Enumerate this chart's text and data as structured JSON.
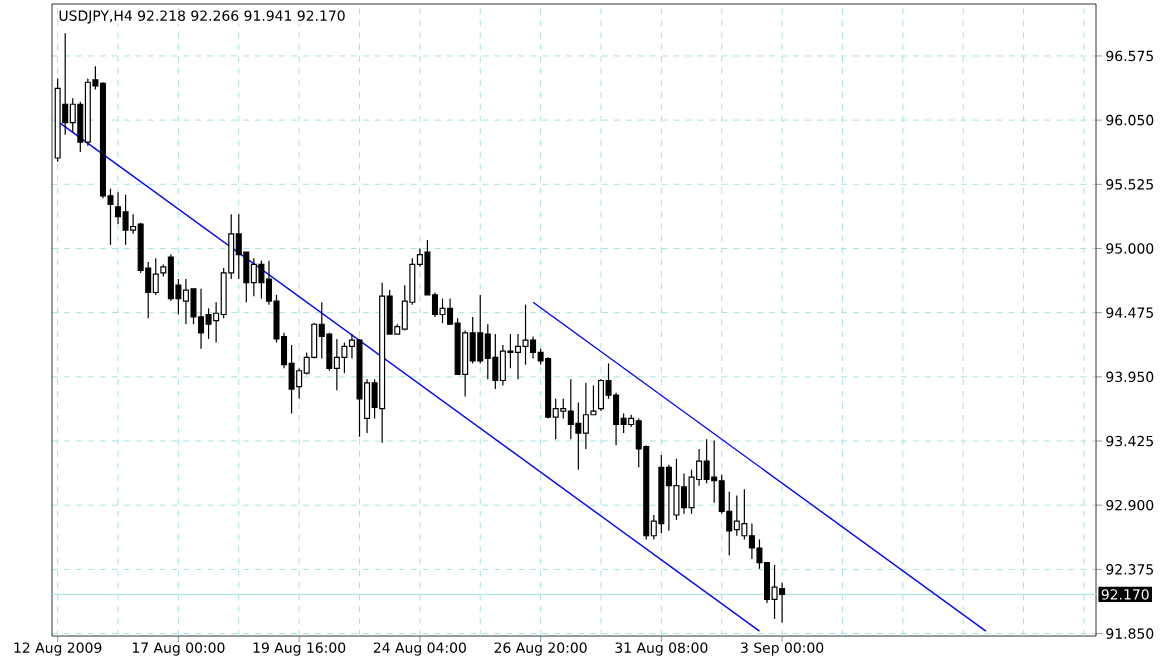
{
  "chart_data": {
    "type": "candlestick",
    "title": "USDJPY,H4  92.218 92.266 91.941 92.170",
    "categories": [
      "12 Aug 2009",
      null,
      null,
      null,
      null,
      null,
      null,
      null,
      null,
      null,
      null,
      null,
      null,
      null,
      null,
      null,
      "17 Aug 00:00",
      null,
      null,
      null,
      null,
      null,
      null,
      null,
      null,
      null,
      null,
      null,
      null,
      null,
      null,
      null,
      "19 Aug 16:00",
      null,
      null,
      null,
      null,
      null,
      null,
      null,
      null,
      null,
      null,
      null,
      null,
      null,
      null,
      null,
      "24 Aug 04:00",
      null,
      null,
      null,
      null,
      null,
      null,
      null,
      null,
      null,
      null,
      null,
      null,
      null,
      null,
      null,
      "26 Aug 20:00",
      null,
      null,
      null,
      null,
      null,
      null,
      null,
      null,
      null,
      null,
      null,
      null,
      null,
      null,
      null,
      "31 Aug 08:00",
      null,
      null,
      null,
      null,
      null,
      null,
      null,
      null,
      null,
      null,
      null,
      null,
      null,
      null,
      null,
      "3 Sep 00:00",
      null,
      null,
      null,
      null,
      null,
      null,
      null,
      null,
      null,
      null,
      null,
      null,
      null,
      null,
      null,
      null,
      null,
      null,
      null,
      null,
      null,
      null,
      null,
      null,
      null,
      null,
      null,
      null,
      null,
      null,
      null,
      null,
      null,
      null,
      null,
      null,
      null,
      null,
      null,
      null,
      null
    ],
    "ohlc": [
      [
        95.74,
        96.39,
        95.71,
        96.31
      ],
      [
        96.18,
        96.76,
        95.93,
        96.03
      ],
      [
        96.03,
        96.23,
        95.95,
        96.18
      ],
      [
        96.18,
        96.2,
        95.79,
        95.87
      ],
      [
        95.87,
        96.39,
        95.84,
        96.36
      ],
      [
        96.38,
        96.49,
        96.3,
        96.33
      ],
      [
        96.35,
        96.36,
        95.41,
        95.43
      ],
      [
        95.43,
        95.49,
        95.03,
        95.36
      ],
      [
        95.34,
        95.46,
        95.2,
        95.26
      ],
      [
        95.3,
        95.44,
        95.03,
        95.15
      ],
      [
        95.15,
        95.28,
        95.12,
        95.18
      ],
      [
        95.2,
        95.21,
        94.8,
        94.82
      ],
      [
        94.84,
        94.89,
        94.43,
        94.64
      ],
      [
        94.64,
        94.92,
        94.62,
        94.79
      ],
      [
        94.8,
        94.87,
        94.77,
        94.85
      ],
      [
        94.93,
        94.95,
        94.57,
        94.59
      ],
      [
        94.7,
        94.75,
        94.46,
        94.59
      ],
      [
        94.57,
        94.75,
        94.38,
        94.66
      ],
      [
        94.67,
        94.67,
        94.38,
        94.44
      ],
      [
        94.44,
        94.67,
        94.18,
        94.31
      ],
      [
        94.46,
        94.51,
        94.26,
        94.38
      ],
      [
        94.41,
        94.56,
        94.23,
        94.47
      ],
      [
        94.46,
        94.84,
        94.43,
        94.8
      ],
      [
        94.8,
        95.28,
        94.75,
        95.12
      ],
      [
        95.12,
        95.28,
        94.75,
        94.95
      ],
      [
        94.97,
        94.97,
        94.56,
        94.72
      ],
      [
        94.72,
        94.92,
        94.61,
        94.87
      ],
      [
        94.87,
        94.9,
        94.59,
        94.72
      ],
      [
        94.75,
        94.9,
        94.54,
        94.57
      ],
      [
        94.57,
        94.62,
        94.23,
        94.26
      ],
      [
        94.28,
        94.31,
        94.02,
        94.05
      ],
      [
        94.06,
        94.21,
        93.65,
        93.85
      ],
      [
        93.87,
        94.02,
        93.77,
        94.0
      ],
      [
        93.98,
        94.15,
        93.97,
        94.11
      ],
      [
        94.11,
        94.39,
        94.1,
        94.38
      ],
      [
        94.38,
        94.56,
        94.1,
        94.28
      ],
      [
        94.3,
        94.31,
        94.0,
        94.02
      ],
      [
        94.02,
        94.26,
        93.84,
        94.11
      ],
      [
        94.11,
        94.23,
        93.98,
        94.2
      ],
      [
        94.2,
        94.3,
        94.1,
        94.25
      ],
      [
        94.25,
        94.26,
        93.46,
        93.77
      ],
      [
        93.61,
        93.93,
        93.49,
        93.9
      ],
      [
        93.9,
        93.93,
        93.61,
        93.7
      ],
      [
        93.69,
        94.72,
        93.41,
        94.61
      ],
      [
        94.61,
        94.66,
        94.3,
        94.3
      ],
      [
        94.3,
        94.38,
        94.3,
        94.36
      ],
      [
        94.34,
        94.7,
        94.33,
        94.57
      ],
      [
        94.56,
        94.92,
        94.54,
        94.87
      ],
      [
        94.87,
        95.0,
        94.85,
        94.95
      ],
      [
        94.97,
        95.07,
        94.62,
        94.62
      ],
      [
        94.62,
        94.64,
        94.44,
        94.46
      ],
      [
        94.46,
        94.59,
        94.39,
        94.51
      ],
      [
        94.51,
        94.59,
        94.38,
        94.38
      ],
      [
        94.39,
        94.43,
        93.97,
        93.97
      ],
      [
        93.97,
        94.33,
        93.79,
        94.31
      ],
      [
        94.31,
        94.44,
        94.06,
        94.08
      ],
      [
        94.31,
        94.62,
        94.06,
        94.08
      ],
      [
        94.3,
        94.38,
        93.93,
        94.1
      ],
      [
        94.11,
        94.3,
        93.85,
        93.92
      ],
      [
        93.92,
        94.21,
        93.88,
        94.16
      ],
      [
        94.16,
        94.3,
        94.02,
        94.15
      ],
      [
        94.15,
        94.3,
        93.93,
        94.2
      ],
      [
        94.2,
        94.54,
        94.05,
        94.25
      ],
      [
        94.25,
        94.28,
        94.1,
        94.15
      ],
      [
        94.15,
        94.18,
        94.05,
        94.08
      ],
      [
        94.1,
        94.11,
        93.61,
        93.62
      ],
      [
        93.62,
        93.77,
        93.44,
        93.69
      ],
      [
        93.67,
        93.77,
        93.61,
        93.69
      ],
      [
        93.67,
        93.93,
        93.44,
        93.56
      ],
      [
        93.57,
        93.74,
        93.19,
        93.49
      ],
      [
        93.49,
        93.9,
        93.36,
        93.64
      ],
      [
        93.64,
        93.88,
        93.64,
        93.67
      ],
      [
        93.69,
        93.93,
        93.67,
        93.92
      ],
      [
        93.92,
        94.06,
        93.77,
        93.8
      ],
      [
        93.8,
        93.82,
        93.39,
        93.56
      ],
      [
        93.61,
        93.65,
        93.49,
        93.56
      ],
      [
        93.56,
        93.64,
        93.54,
        93.61
      ],
      [
        93.59,
        93.61,
        93.21,
        93.36
      ],
      [
        93.38,
        93.39,
        92.62,
        92.65
      ],
      [
        92.65,
        92.82,
        92.62,
        92.77
      ],
      [
        93.21,
        93.31,
        92.67,
        92.75
      ],
      [
        93.21,
        93.23,
        92.69,
        93.06
      ],
      [
        92.82,
        93.28,
        92.78,
        93.06
      ],
      [
        93.05,
        93.16,
        92.83,
        92.88
      ],
      [
        92.88,
        93.19,
        92.83,
        93.13
      ],
      [
        93.11,
        93.36,
        93.06,
        93.26
      ],
      [
        93.26,
        93.44,
        93.08,
        93.11
      ],
      [
        93.13,
        93.43,
        92.92,
        93.1
      ],
      [
        93.1,
        93.15,
        92.83,
        92.85
      ],
      [
        92.85,
        93.01,
        92.49,
        92.69
      ],
      [
        92.7,
        92.98,
        92.65,
        92.77
      ],
      [
        92.65,
        93.03,
        92.62,
        92.75
      ],
      [
        92.65,
        92.75,
        92.46,
        92.55
      ],
      [
        92.55,
        92.62,
        92.38,
        92.43
      ],
      [
        92.43,
        92.43,
        92.1,
        92.13
      ],
      [
        92.13,
        92.41,
        91.97,
        92.23
      ],
      [
        92.218,
        92.266,
        91.941,
        92.17
      ],
      null,
      null,
      null,
      null,
      null,
      null,
      null,
      null,
      null,
      null,
      null,
      null,
      null,
      null,
      null,
      null,
      null,
      null,
      null,
      null,
      null,
      null,
      null,
      null,
      null,
      null,
      null,
      null,
      null,
      null,
      null,
      null,
      null,
      null,
      null,
      null,
      null,
      null,
      null,
      null,
      null
    ],
    "series": [
      {
        "type": "line",
        "color": "#0000ff",
        "values": [
          96.04,
          null,
          null,
          null,
          null,
          null,
          null,
          null,
          null,
          null,
          null,
          null,
          null,
          null,
          null,
          null,
          null,
          null,
          null,
          null,
          null,
          null,
          null,
          null,
          null,
          null,
          null,
          null,
          null,
          null,
          null,
          null,
          null,
          null,
          null,
          null,
          null,
          null,
          null,
          null,
          null,
          null,
          null,
          null,
          null,
          null,
          null,
          null,
          null,
          null,
          null,
          null,
          null,
          null,
          null,
          null,
          null,
          null,
          null,
          null,
          null,
          null,
          null,
          null,
          null,
          null,
          null,
          null,
          null,
          null,
          null,
          null,
          null,
          null,
          null,
          null,
          null,
          null,
          null,
          null,
          null,
          null,
          null,
          null,
          null,
          null,
          null,
          null,
          null,
          null,
          null,
          null,
          null,
          91.87,
          null,
          null,
          null,
          null,
          null,
          null,
          null,
          null,
          null,
          null,
          null,
          null,
          null,
          null,
          null,
          null,
          null,
          null,
          null,
          null,
          null,
          null,
          null,
          null,
          null,
          null,
          null,
          null,
          null,
          null,
          null,
          null,
          null,
          null,
          null,
          null,
          null,
          null,
          null,
          null,
          null,
          null,
          null,
          null
        ]
      },
      {
        "type": "line",
        "color": "#0000ff",
        "values": [
          null,
          null,
          null,
          null,
          null,
          null,
          null,
          null,
          null,
          null,
          null,
          null,
          null,
          null,
          null,
          null,
          null,
          null,
          null,
          null,
          null,
          null,
          null,
          null,
          null,
          null,
          null,
          null,
          null,
          null,
          null,
          null,
          null,
          null,
          null,
          null,
          null,
          null,
          null,
          null,
          null,
          null,
          null,
          null,
          null,
          null,
          null,
          null,
          null,
          null,
          null,
          null,
          null,
          null,
          null,
          null,
          null,
          null,
          null,
          null,
          null,
          null,
          null,
          94.56,
          null,
          null,
          null,
          null,
          null,
          null,
          null,
          null,
          null,
          null,
          null,
          null,
          null,
          null,
          null,
          null,
          null,
          null,
          null,
          null,
          null,
          null,
          null,
          null,
          null,
          null,
          null,
          null,
          null,
          null,
          null,
          null,
          null,
          null,
          null,
          null,
          null,
          null,
          null,
          null,
          null,
          null,
          null,
          null,
          null,
          null,
          null,
          null,
          null,
          null,
          null,
          null,
          null,
          null,
          null,
          null,
          null,
          null,
          null,
          91.87,
          null,
          null,
          null,
          null,
          null,
          null,
          null,
          null,
          null,
          null,
          null,
          null,
          null,
          null
        ]
      }
    ],
    "ylim": [
      91.83,
      97.0
    ],
    "yticks": [
      {
        "value": 91.85,
        "label": "91.850"
      },
      92.375,
      {
        "value": 92.9,
        "label": "92.900"
      },
      93.425,
      {
        "value": 93.95,
        "label": "93.950"
      },
      94.475,
      {
        "value": 95.0,
        "label": "95.000"
      },
      95.525,
      {
        "value": 96.05,
        "label": "96.050"
      },
      96.575
    ],
    "ref_lines": [
      {
        "axis": "y",
        "value": 92.17,
        "label": "92.170",
        "color": "#b4e6e6"
      }
    ],
    "grid": true
  }
}
